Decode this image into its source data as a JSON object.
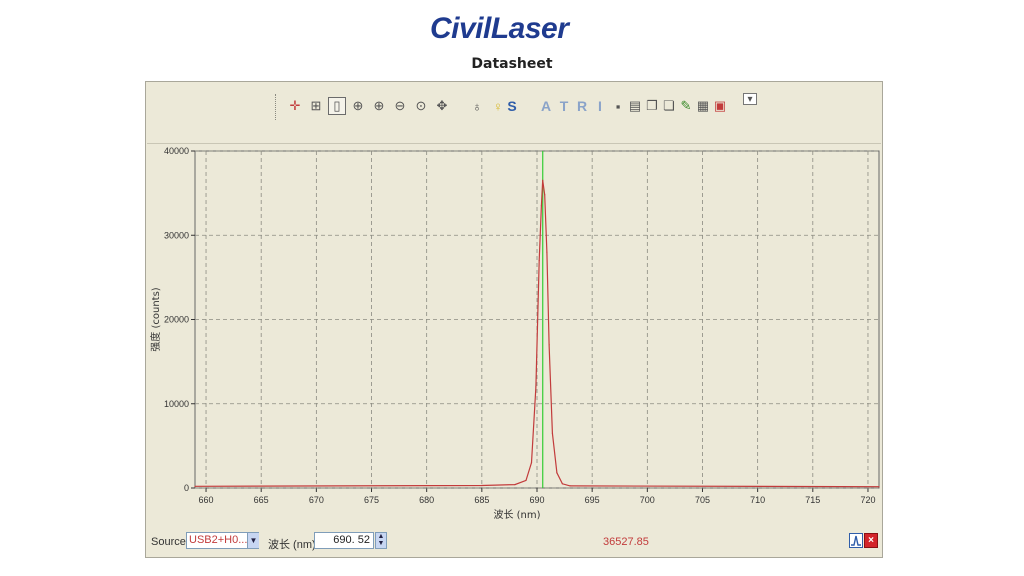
{
  "header": {
    "logo_text": "CivilLaser",
    "subtitle": "Datasheet"
  },
  "toolbar": {
    "buttons": [
      {
        "icon": "crosshair-icon"
      },
      {
        "icon": "grid-zoom-icon"
      },
      {
        "icon": "cursor-mode-icon",
        "selected": true
      },
      {
        "icon": "zoom-fit-icon"
      },
      {
        "icon": "zoom-in-icon"
      },
      {
        "icon": "zoom-out-icon"
      },
      {
        "icon": "zoom-reset-icon"
      },
      {
        "icon": "pan-icon"
      },
      {
        "icon": "lamp-off-icon"
      },
      {
        "icon": "lamp-on-icon"
      }
    ],
    "mode_letters": [
      "S",
      "A",
      "T",
      "R",
      "I"
    ],
    "right_buttons": [
      {
        "icon": "save-icon"
      },
      {
        "icon": "print-icon"
      },
      {
        "icon": "copy-icon"
      },
      {
        "icon": "paste-icon"
      },
      {
        "icon": "edit-icon"
      },
      {
        "icon": "document-icon"
      },
      {
        "icon": "export-icon"
      },
      {
        "icon": "dropdown-icon"
      }
    ]
  },
  "status": {
    "source_label": "Source:",
    "source_value": "USB2+H0...",
    "wavelength_label": "波长 (nm):",
    "wavelength_value": "690. 52",
    "readout": "36527.85"
  },
  "colors": {
    "spectrum": "#c23b3b",
    "marker": "#33cc33",
    "plot_bg": "#ece9d8",
    "grid": "#8a8a80"
  },
  "chart_data": {
    "type": "line",
    "title": "",
    "xlabel": "波长 (nm)",
    "ylabel": "强度 (counts)",
    "xlim": [
      659,
      721
    ],
    "ylim": [
      0,
      40000
    ],
    "xticks": [
      660,
      665,
      670,
      675,
      680,
      685,
      690,
      695,
      700,
      705,
      710,
      715,
      720
    ],
    "yticks": [
      0,
      10000,
      20000,
      30000,
      40000
    ],
    "grid": true,
    "marker_x": 690.52,
    "series": [
      {
        "x": [
          659,
          685,
          688,
          689,
          689.5,
          689.9,
          690.2,
          690.4,
          690.52,
          690.7,
          690.9,
          691.1,
          691.4,
          691.8,
          692.3,
          693,
          721
        ],
        "y": [
          200,
          300,
          400,
          900,
          3000,
          12000,
          27000,
          33500,
          36527.85,
          34800,
          28000,
          17000,
          6500,
          1800,
          500,
          250,
          150
        ]
      }
    ]
  }
}
